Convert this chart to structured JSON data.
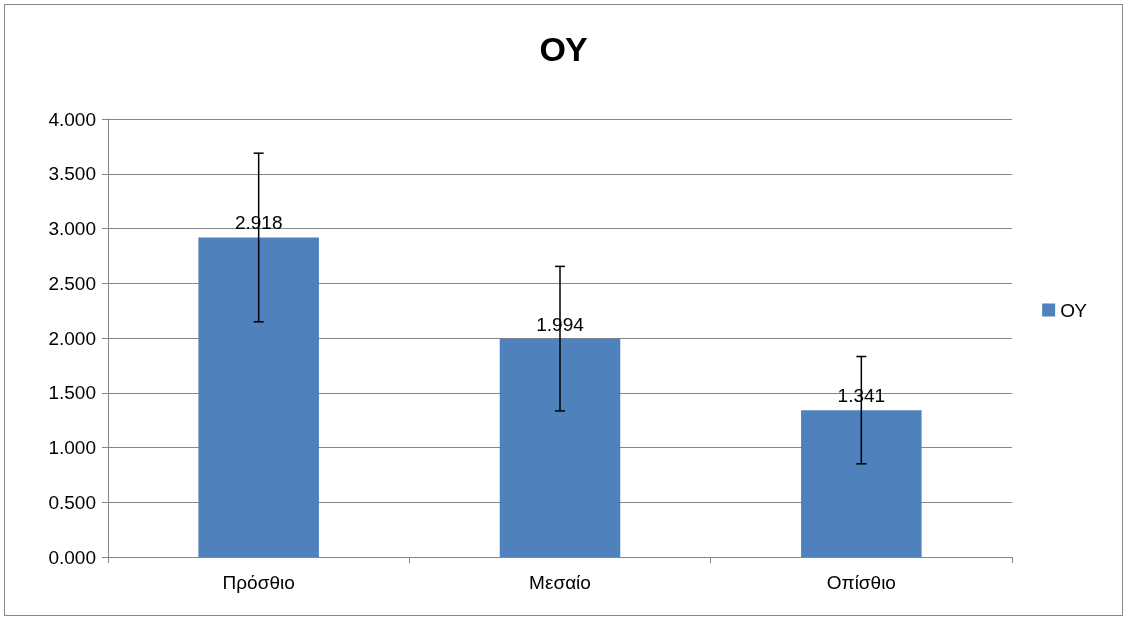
{
  "chart_data": {
    "type": "bar",
    "title": "ΟΥ",
    "categories": [
      "Πρόσθιο",
      "Μεσαίο",
      "Οπίσθιο"
    ],
    "series": [
      {
        "name": "ΟΥ",
        "color": "#4f81bd",
        "values": [
          2.918,
          1.994,
          1.341
        ],
        "value_labels": [
          "2.918",
          "1.994",
          "1.341"
        ],
        "errors": [
          0.77,
          0.66,
          0.49
        ]
      }
    ],
    "ylim": [
      0,
      4
    ],
    "yticks": [
      {
        "value": 0,
        "label": "0.000"
      },
      {
        "value": 0.5,
        "label": "0.500"
      },
      {
        "value": 1,
        "label": "1.000"
      },
      {
        "value": 1.5,
        "label": "1.500"
      },
      {
        "value": 2,
        "label": "2.000"
      },
      {
        "value": 2.5,
        "label": "2.500"
      },
      {
        "value": 3,
        "label": "3.000"
      },
      {
        "value": 3.5,
        "label": "3.500"
      },
      {
        "value": 4,
        "label": "4.000"
      }
    ],
    "grid": "y",
    "legend": "right"
  }
}
